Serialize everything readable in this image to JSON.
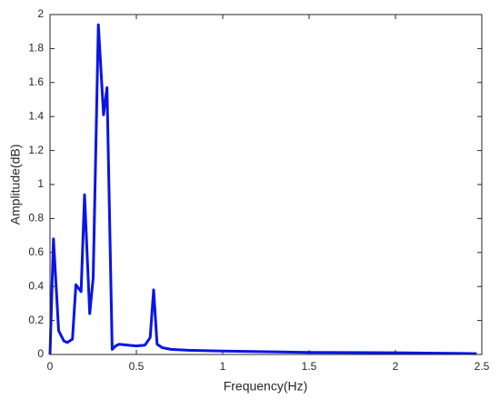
{
  "chart_data": {
    "type": "line",
    "x_label": "Frequency(Hz)",
    "y_label": "Amplitude(dB)",
    "xlim": [
      0,
      2.5
    ],
    "ylim": [
      0,
      2
    ],
    "xticks": [
      0,
      0.5,
      1,
      1.5,
      2,
      2.5
    ],
    "yticks": [
      0,
      0.2,
      0.4,
      0.6,
      0.8,
      1,
      1.2,
      1.4,
      1.6,
      1.8,
      2
    ],
    "grid": false,
    "series": [
      {
        "name": "Amplitude",
        "color": "#0a14e6",
        "x": [
          0,
          0.02,
          0.05,
          0.08,
          0.1,
          0.13,
          0.15,
          0.18,
          0.2,
          0.23,
          0.25,
          0.28,
          0.31,
          0.33,
          0.36,
          0.38,
          0.4,
          0.45,
          0.5,
          0.55,
          0.58,
          0.6,
          0.62,
          0.65,
          0.7,
          0.8,
          1,
          1.5,
          2,
          2.47
        ],
        "values": [
          0,
          0.68,
          0.14,
          0.08,
          0.07,
          0.09,
          0.41,
          0.37,
          0.94,
          0.24,
          0.45,
          1.94,
          1.41,
          1.57,
          0.03,
          0.05,
          0.06,
          0.055,
          0.05,
          0.055,
          0.1,
          0.38,
          0.06,
          0.04,
          0.03,
          0.025,
          0.02,
          0.012,
          0.01,
          0.005
        ]
      }
    ]
  }
}
